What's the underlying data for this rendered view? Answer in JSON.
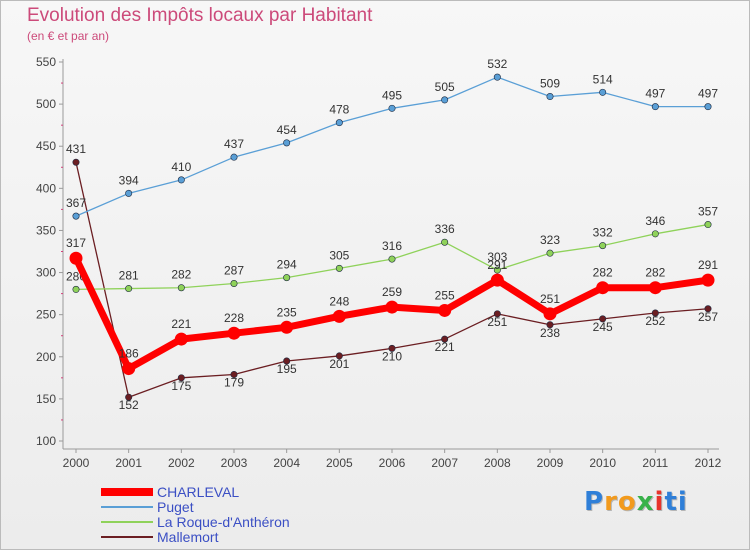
{
  "header": {
    "title": "Evolution des Impôts locaux par Habitant",
    "subtitle": "(en € et par an)"
  },
  "brand": {
    "text": "Proxiti",
    "letters": [
      "P",
      "r",
      "o",
      "x",
      "i",
      "t",
      "i"
    ],
    "colors": [
      "#2f7fd8",
      "#f29a1c",
      "#f29a1c",
      "#38b24a",
      "#e8342c",
      "#2f7fd8",
      "#2f7fd8"
    ]
  },
  "chart_data": {
    "type": "line",
    "title": "Evolution des Impôts locaux par Habitant",
    "subtitle": "(en € et par an)",
    "xlabel": "",
    "ylabel": "",
    "ylim": [
      100,
      550
    ],
    "yticks": [
      100,
      150,
      200,
      250,
      300,
      350,
      400,
      450,
      500,
      550
    ],
    "grid": false,
    "legend_position": "bottom-left",
    "x": [
      "2000",
      "2001",
      "2002",
      "2003",
      "2004",
      "2005",
      "2006",
      "2007",
      "2008",
      "2009",
      "2010",
      "2011",
      "2012"
    ],
    "series": [
      {
        "name": "Mallemort",
        "color": "#6b1e22",
        "values": [
          431,
          152,
          175,
          179,
          195,
          201,
          210,
          221,
          251,
          238,
          245,
          252,
          257
        ]
      },
      {
        "name": "La Roque-d'Anthéron",
        "color": "#8fd25a",
        "values": [
          280,
          281,
          282,
          287,
          294,
          305,
          316,
          336,
          303,
          323,
          332,
          346,
          357
        ]
      },
      {
        "name": "Puget",
        "color": "#5a9fd6",
        "values": [
          367,
          394,
          410,
          437,
          454,
          478,
          495,
          505,
          532,
          509,
          514,
          497,
          497
        ]
      },
      {
        "name": "CHARLEVAL",
        "color": "#ff0000",
        "values": [
          317,
          186,
          221,
          228,
          235,
          248,
          259,
          255,
          291,
          251,
          282,
          282,
          291
        ]
      }
    ],
    "data_labels": [
      {
        "series": "Mallemort",
        "labels": [
          "431",
          "152",
          "175",
          "179",
          "195",
          "201",
          "210",
          "221",
          "251",
          "238",
          "245",
          "252",
          "257"
        ]
      },
      {
        "series": "La Roque-d'Anthéron",
        "labels": [
          "280",
          "281",
          "282",
          "287",
          "294",
          "305",
          "316",
          "336",
          "303",
          "323",
          "332",
          "346",
          "357"
        ]
      },
      {
        "series": "Puget",
        "labels": [
          "367",
          "394",
          "410",
          "437",
          "454",
          "478",
          "495",
          "505",
          "532",
          "509",
          "514",
          "497",
          "497"
        ]
      },
      {
        "series": "CHARLEVAL",
        "labels": [
          "317",
          "186",
          "221",
          "228",
          "235",
          "248",
          "259",
          "255",
          "291",
          "251",
          "282",
          "282",
          "291"
        ]
      }
    ],
    "legend": [
      "CHARLEVAL",
      "Puget",
      "La Roque-d'Anthéron",
      "Mallemort"
    ]
  }
}
